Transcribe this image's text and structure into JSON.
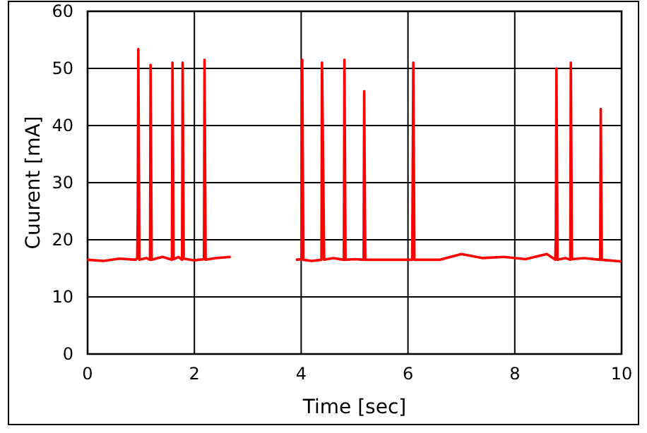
{
  "chart_data": {
    "type": "line",
    "xlabel": "Time [sec]",
    "ylabel": "Cuurent [mA]",
    "xlim": [
      0,
      10
    ],
    "ylim": [
      0,
      60
    ],
    "xticks": [
      0,
      2,
      4,
      6,
      8,
      10
    ],
    "yticks": [
      0,
      10,
      20,
      30,
      40,
      50,
      60
    ],
    "grid": true,
    "marker": "none",
    "line_style": "solid",
    "series": [
      {
        "color": "#ff0000",
        "x": [
          0,
          0.3,
          0.6,
          0.9,
          0.93,
          0.94,
          0.95,
          0.97,
          1.1,
          1.17,
          1.18,
          1.2,
          1.4,
          1.58,
          1.59,
          1.61,
          1.7,
          1.77,
          1.78,
          1.8,
          2.0,
          2.18,
          2.19,
          2.21,
          2.4,
          2.68,
          2.69,
          3.9,
          4.01,
          4.02,
          4.04,
          4.2,
          4.38,
          4.39,
          4.41,
          4.43,
          4.6,
          4.8,
          4.81,
          4.83,
          5.0,
          5.17,
          5.18,
          5.2,
          5.6,
          6.08,
          6.1,
          6.12,
          6.6,
          7.0,
          7.4,
          7.8,
          8.2,
          8.6,
          8.76,
          8.77,
          8.78,
          8.8,
          8.95,
          9.04,
          9.05,
          9.07,
          9.3,
          9.6,
          9.61,
          9.63,
          10
        ],
        "values": [
          16.5,
          16.3,
          16.7,
          16.5,
          16.8,
          25,
          53.4,
          16.5,
          16.8,
          16.5,
          50.6,
          16.5,
          17,
          16.5,
          51,
          16.6,
          17,
          16.5,
          51,
          16.7,
          16.4,
          16.6,
          51.5,
          16.5,
          16.8,
          17,
          null,
          16.5,
          16.6,
          51.5,
          16.5,
          16.3,
          16.5,
          51,
          34,
          16.5,
          16.8,
          16.5,
          51.5,
          16.5,
          16.6,
          16.5,
          46,
          16.5,
          16.5,
          16.5,
          51,
          16.5,
          16.5,
          17.5,
          16.8,
          17,
          16.6,
          17.5,
          16.5,
          21,
          50,
          16.5,
          16.8,
          16.5,
          51,
          16.6,
          16.8,
          16.5,
          42.9,
          16.5,
          16.2
        ]
      }
    ]
  }
}
